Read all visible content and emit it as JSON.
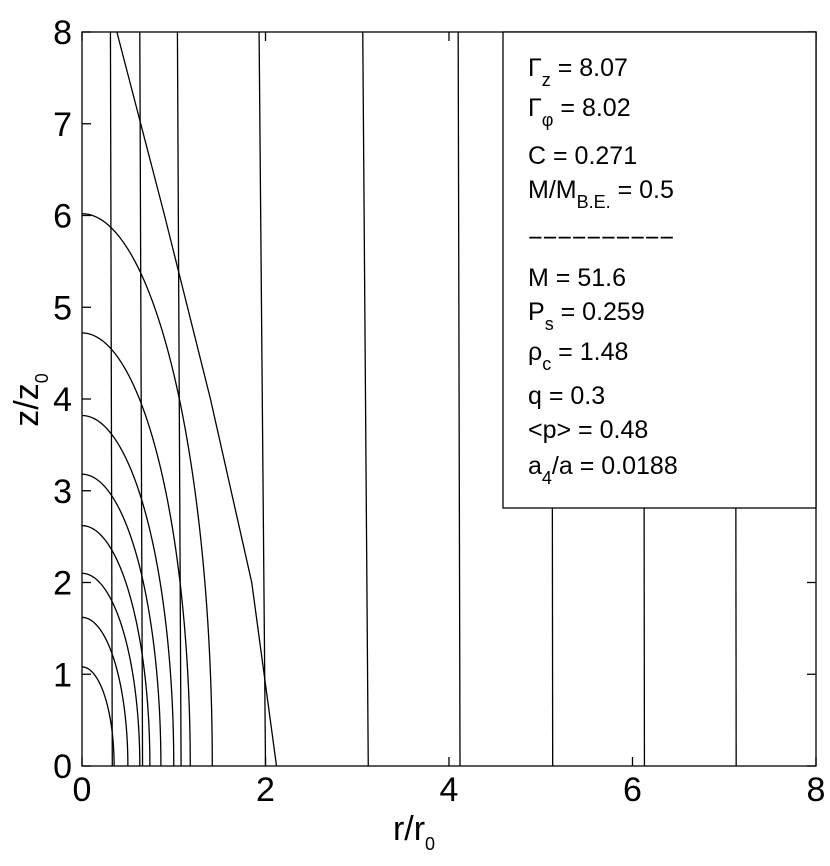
{
  "chart_data": {
    "type": "line",
    "xlabel": {
      "main": "r/r",
      "sub": "0"
    },
    "ylabel": {
      "main": "z/z",
      "sub": "0"
    },
    "xlim": [
      0,
      8
    ],
    "ylim": [
      0,
      8
    ],
    "xticks": [
      "0",
      "2",
      "4",
      "6",
      "8"
    ],
    "yticks": [
      "0",
      "1",
      "2",
      "3",
      "4",
      "5",
      "6",
      "7",
      "8"
    ],
    "grid": false,
    "legend_position": "top-right",
    "annotations": [
      {
        "pre": "Γ",
        "sub": "z",
        "post": " = 8.07"
      },
      {
        "pre": "Γ",
        "sub": "φ",
        "post": " = 8.02"
      },
      {
        "pre": "C = 0.271",
        "sub": "",
        "post": ""
      },
      {
        "pre": "M/M",
        "sub": "B.E.",
        "post": " = 0.5"
      },
      {
        "pre": "−−−−−−−−−−",
        "sub": "",
        "post": ""
      },
      {
        "pre": "M = 51.6",
        "sub": "",
        "post": ""
      },
      {
        "pre": "P",
        "sub": "s",
        "post": " = 0.259"
      },
      {
        "pre": "ρ",
        "sub": "c",
        "post": " = 1.48"
      },
      {
        "pre": "q = 0.3",
        "sub": "",
        "post": ""
      },
      {
        "pre": "<p> = 0.48",
        "sub": "",
        "post": ""
      },
      {
        "pre": "a",
        "sub": "4",
        "post": "/a = 0.0188"
      }
    ],
    "series": [
      {
        "type": "ellipse",
        "a": 0.35,
        "b": 1.08
      },
      {
        "type": "ellipse",
        "a": 0.5,
        "b": 1.62
      },
      {
        "type": "ellipse",
        "a": 0.63,
        "b": 2.1
      },
      {
        "type": "ellipse",
        "a": 0.74,
        "b": 2.62
      },
      {
        "type": "ellipse",
        "a": 0.86,
        "b": 3.18
      },
      {
        "type": "ellipse",
        "a": 1.0,
        "b": 3.82
      },
      {
        "type": "ellipse",
        "a": 1.18,
        "b": 4.72
      },
      {
        "type": "ellipse",
        "a": 1.42,
        "b": 6.02
      },
      {
        "type": "boundary",
        "x": [
          0.38,
          0.9,
          1.4,
          1.85,
          2.12
        ],
        "y": [
          8.0,
          6.0,
          4.0,
          2.0,
          0.0
        ]
      },
      {
        "type": "vertical",
        "x": [
          0.31,
          0.33
        ]
      },
      {
        "type": "vertical",
        "x": [
          0.63,
          0.66
        ]
      },
      {
        "type": "vertical",
        "x": [
          1.04,
          1.08
        ]
      },
      {
        "type": "vertical",
        "x": [
          1.93,
          2.0
        ]
      },
      {
        "type": "vertical",
        "x": [
          3.06,
          3.12
        ]
      },
      {
        "type": "vertical",
        "x": [
          4.1,
          4.12
        ]
      },
      {
        "type": "vertical",
        "x": [
          5.12,
          5.13
        ]
      },
      {
        "type": "vertical",
        "x": [
          6.12,
          6.13
        ]
      },
      {
        "type": "vertical",
        "x": [
          7.12,
          7.13
        ]
      }
    ]
  }
}
